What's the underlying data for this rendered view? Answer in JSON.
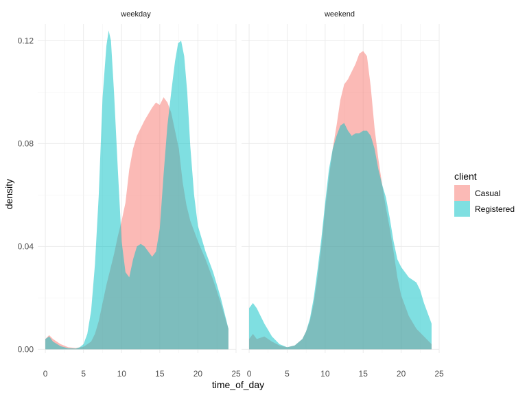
{
  "chart_data": {
    "type": "area",
    "subtype": "density",
    "facets": [
      "weekday",
      "weekend"
    ],
    "xlabel": "time_of_day",
    "ylabel": "density",
    "xlim": [
      -1,
      25
    ],
    "ylim": [
      -0.0015,
      0.1265
    ],
    "xticks": [
      0,
      5,
      10,
      15,
      20,
      25
    ],
    "yticks": [
      0.0,
      0.04,
      0.08,
      0.12
    ],
    "ytick_labels": [
      "0.00",
      "0.04",
      "0.08",
      "0.12"
    ],
    "grid": true,
    "legend": {
      "title": "client",
      "position": "right",
      "entries": [
        "Casual",
        "Registered"
      ]
    },
    "colors": {
      "Casual": "#F8766D",
      "Registered": "#00BFC4"
    },
    "fill_opacity": 0.5,
    "panels": [
      {
        "facet": "weekday",
        "series": [
          {
            "name": "Casual",
            "x": [
              0,
              0.5,
              1,
              2,
              3,
              4,
              5,
              6,
              6.5,
              7,
              7.5,
              8,
              8.5,
              9,
              9.5,
              10,
              10.5,
              11,
              11.5,
              12,
              13,
              14,
              14.5,
              15,
              15.5,
              16,
              16.5,
              17,
              17.5,
              18,
              18.5,
              19,
              19.5,
              20,
              21,
              22,
              23,
              24
            ],
            "y": [
              0.004,
              0.0055,
              0.004,
              0.002,
              0.0008,
              0.0005,
              0.001,
              0.003,
              0.006,
              0.011,
              0.018,
              0.025,
              0.031,
              0.037,
              0.044,
              0.05,
              0.057,
              0.07,
              0.078,
              0.083,
              0.089,
              0.094,
              0.096,
              0.095,
              0.098,
              0.096,
              0.092,
              0.085,
              0.078,
              0.065,
              0.056,
              0.05,
              0.046,
              0.042,
              0.035,
              0.027,
              0.018,
              0.008
            ]
          },
          {
            "name": "Registered",
            "x": [
              0,
              0.5,
              1,
              2,
              3,
              4,
              4.5,
              5,
              5.5,
              6,
              6.5,
              7,
              7.5,
              8,
              8.3,
              8.6,
              9,
              9.5,
              10,
              10.5,
              11,
              11.5,
              12,
              12.5,
              13,
              13.5,
              14,
              14.5,
              15,
              15.5,
              16,
              16.5,
              17,
              17.4,
              17.8,
              18.2,
              18.6,
              19,
              19.5,
              20,
              21,
              22,
              23,
              24
            ],
            "y": [
              0.004,
              0.005,
              0.003,
              0.0012,
              0.0004,
              0.0003,
              0.0008,
              0.002,
              0.006,
              0.015,
              0.033,
              0.06,
              0.098,
              0.118,
              0.124,
              0.12,
              0.1,
              0.07,
              0.042,
              0.03,
              0.028,
              0.035,
              0.04,
              0.041,
              0.04,
              0.038,
              0.036,
              0.038,
              0.047,
              0.068,
              0.087,
              0.1,
              0.112,
              0.119,
              0.12,
              0.114,
              0.1,
              0.079,
              0.06,
              0.048,
              0.038,
              0.03,
              0.02,
              0.008
            ]
          }
        ]
      },
      {
        "facet": "weekend",
        "series": [
          {
            "name": "Casual",
            "x": [
              0,
              0.5,
              1,
              2,
              2.5,
              3,
              4,
              5,
              6,
              7,
              7.5,
              8,
              8.5,
              9,
              9.5,
              10,
              10.5,
              11,
              11.5,
              12,
              12.5,
              13,
              13.5,
              14,
              14.5,
              15,
              15.5,
              16,
              16.5,
              17,
              17.5,
              18,
              18.5,
              19,
              19.5,
              20,
              21,
              22,
              23,
              24
            ],
            "y": [
              0.004,
              0.006,
              0.004,
              0.005,
              0.004,
              0.003,
              0.0015,
              0.0008,
              0.0015,
              0.004,
              0.007,
              0.011,
              0.018,
              0.028,
              0.04,
              0.055,
              0.067,
              0.078,
              0.087,
              0.097,
              0.103,
              0.105,
              0.108,
              0.111,
              0.115,
              0.116,
              0.114,
              0.102,
              0.086,
              0.074,
              0.064,
              0.055,
              0.047,
              0.038,
              0.028,
              0.021,
              0.013,
              0.008,
              0.005,
              0.002
            ]
          },
          {
            "name": "Registered",
            "x": [
              0,
              0.5,
              1,
              2,
              3,
              4,
              5,
              6,
              7,
              7.5,
              8,
              8.5,
              9,
              9.5,
              10,
              10.5,
              11,
              11.5,
              12,
              12.5,
              13,
              13.5,
              14,
              14.5,
              15,
              15.5,
              16,
              16.5,
              17,
              17.5,
              18,
              18.5,
              19,
              19.5,
              20,
              20.5,
              21,
              22,
              22.5,
              23,
              24
            ],
            "y": [
              0.016,
              0.018,
              0.016,
              0.01,
              0.005,
              0.002,
              0.0008,
              0.0015,
              0.004,
              0.007,
              0.012,
              0.02,
              0.031,
              0.043,
              0.057,
              0.07,
              0.078,
              0.083,
              0.087,
              0.088,
              0.085,
              0.083,
              0.084,
              0.084,
              0.085,
              0.085,
              0.083,
              0.078,
              0.07,
              0.064,
              0.059,
              0.051,
              0.042,
              0.035,
              0.032,
              0.03,
              0.028,
              0.026,
              0.023,
              0.018,
              0.01
            ]
          }
        ]
      }
    ]
  }
}
